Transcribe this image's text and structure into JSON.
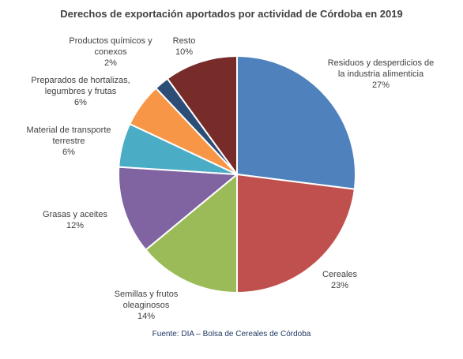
{
  "chart_data": {
    "type": "pie",
    "title": "Derechos de exportación aportados por actividad de Córdoba en 2019",
    "categories": [
      "Residuos y desperdicios de la industria alimenticia",
      "Cereales",
      "Semillas y frutos oleaginosos",
      "Grasas y aceites",
      "Material de transporte terrestre",
      "Preparados de hortalizas, legumbres y frutas",
      "Productos químicos y conexos",
      "Resto"
    ],
    "values": [
      27,
      23,
      14,
      12,
      6,
      6,
      2,
      10
    ],
    "value_labels": [
      "27%",
      "23%",
      "14%",
      "12%",
      "6%",
      "6%",
      "2%",
      "10%"
    ],
    "colors": [
      "#4f81bd",
      "#c0504d",
      "#9bbb59",
      "#8064a2",
      "#4bacc6",
      "#f79646",
      "#2c4d75",
      "#772c2a"
    ],
    "source": "Fuente: DIA – Bolsa de Cereales de Córdoba"
  }
}
